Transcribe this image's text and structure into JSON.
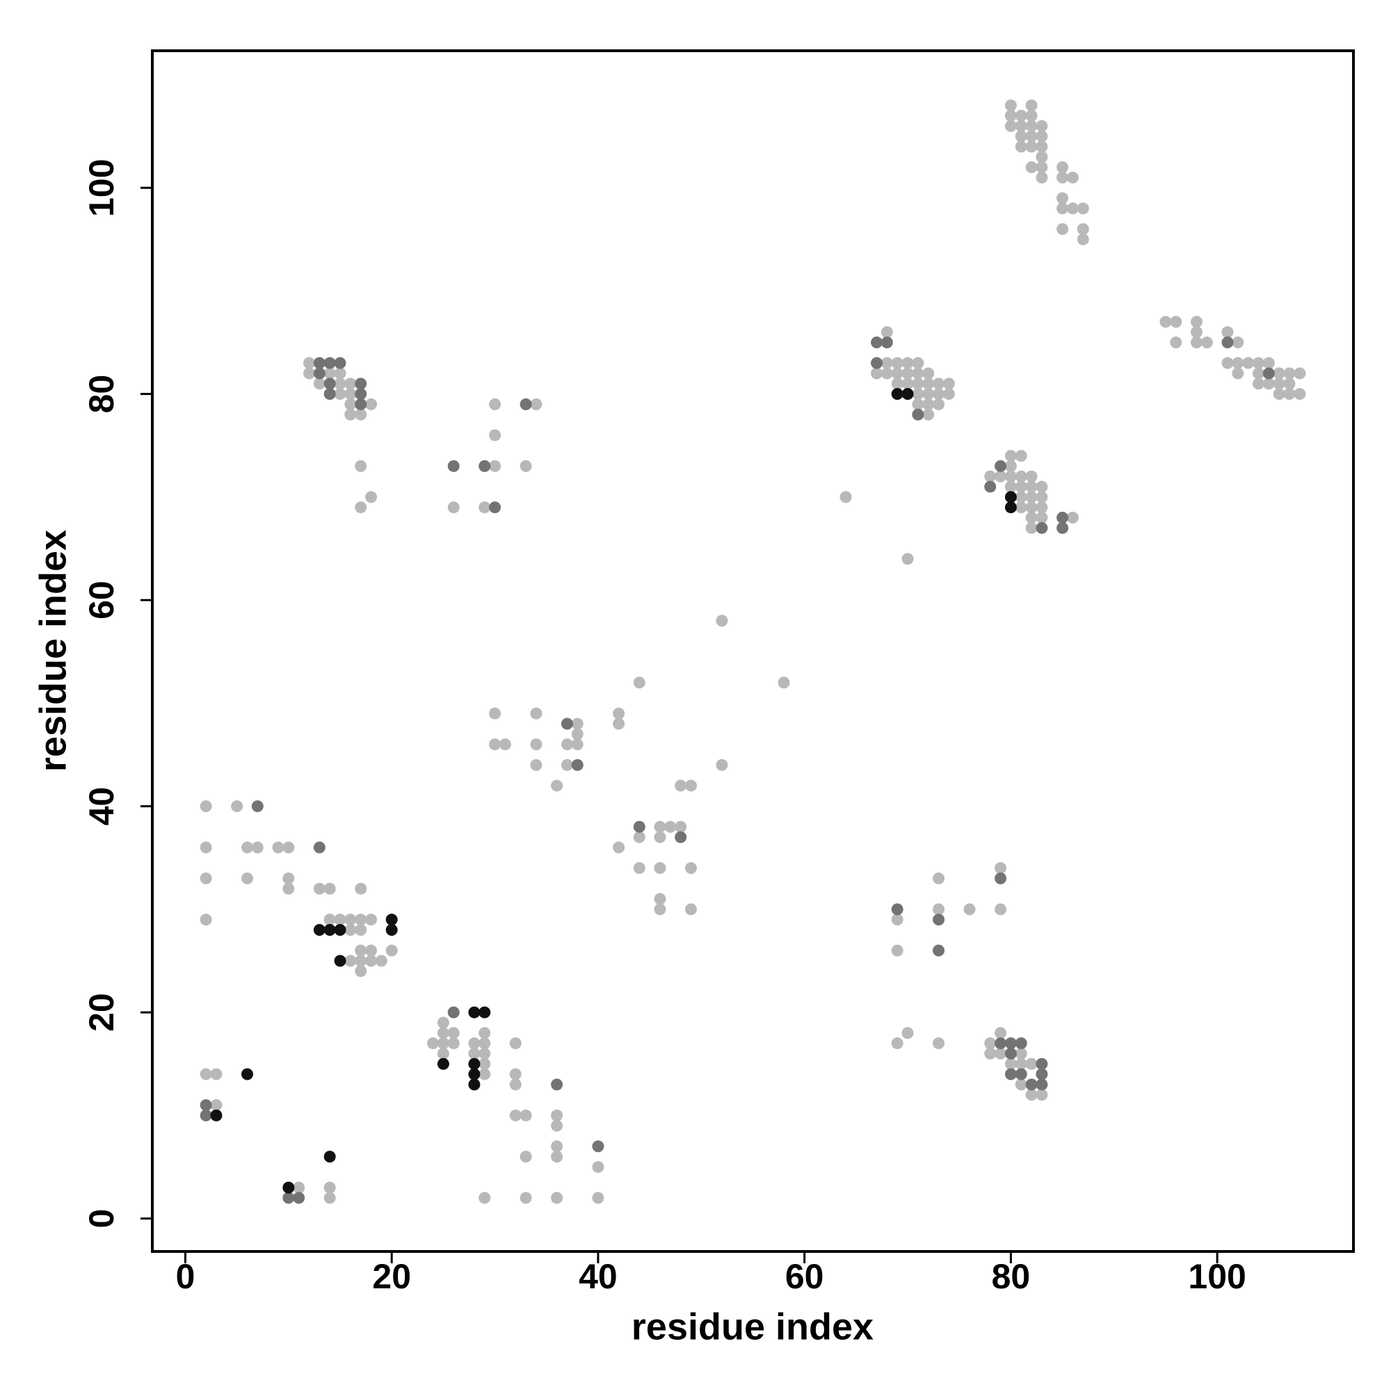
{
  "chart_data": {
    "type": "scatter",
    "x_label": "residue index",
    "y_label": "residue index",
    "xlim": [
      -3.2,
      113.2
    ],
    "ylim": [
      -3.2,
      113.3
    ],
    "xticks": [
      0,
      20,
      40,
      60,
      80,
      100
    ],
    "yticks": [
      0,
      20,
      40,
      60,
      80,
      100
    ],
    "series": [
      {
        "color": "#b8b8b8",
        "x": [
          2,
          5,
          2,
          6,
          7,
          9,
          10,
          2,
          6,
          10,
          10,
          2,
          13,
          14,
          17,
          14,
          15,
          16,
          17,
          18,
          16,
          17,
          17,
          18,
          16,
          17,
          18,
          19,
          17,
          20,
          2,
          3,
          3,
          11,
          14,
          14,
          24,
          25,
          25,
          25,
          25,
          26,
          26,
          28,
          28,
          29,
          29,
          29,
          29,
          29,
          32,
          32,
          32,
          32,
          33,
          33,
          36,
          36,
          36,
          36,
          29,
          33,
          36,
          40,
          40,
          30,
          34,
          30,
          31,
          34,
          37,
          38,
          38,
          38,
          42,
          42,
          44,
          52,
          58,
          52,
          48,
          49,
          34,
          37,
          36,
          42,
          44,
          46,
          47,
          48,
          46,
          44,
          46,
          49,
          46,
          46,
          49,
          12,
          12,
          14,
          15,
          13,
          15,
          15,
          16,
          16,
          17,
          16,
          16,
          17,
          18,
          17,
          17,
          18,
          26,
          30,
          29,
          30,
          30,
          34,
          33,
          68,
          68,
          69,
          70,
          71,
          68,
          69,
          70,
          71,
          72,
          69,
          70,
          71,
          72,
          73,
          74,
          71,
          72,
          73,
          74,
          71,
          72,
          73,
          72,
          67,
          64,
          70,
          78,
          80,
          81,
          79,
          80,
          81,
          82,
          80,
          81,
          82,
          83,
          81,
          82,
          83,
          81,
          82,
          83,
          82,
          83,
          86,
          82,
          80,
          80,
          82,
          80,
          81,
          82,
          80,
          81,
          82,
          83,
          81,
          82,
          83,
          81,
          82,
          83,
          83,
          82,
          83,
          83,
          85,
          85,
          86,
          85,
          85,
          86,
          87,
          85,
          87,
          87,
          95,
          96,
          98,
          96,
          98,
          98,
          99,
          101,
          102,
          101,
          102,
          102,
          103,
          104,
          105,
          104,
          104,
          105,
          106,
          106,
          107,
          107,
          108,
          106,
          107,
          108,
          69,
          69,
          73,
          73,
          76,
          79,
          79,
          69,
          70,
          73,
          78,
          78,
          79,
          79,
          80,
          81,
          81,
          81,
          82,
          82,
          83
        ],
        "y": [
          40,
          40,
          36,
          36,
          36,
          36,
          36,
          33,
          33,
          33,
          32,
          29,
          32,
          32,
          32,
          29,
          29,
          29,
          29,
          29,
          28,
          28,
          26,
          26,
          25,
          25,
          25,
          25,
          24,
          26,
          14,
          14,
          11,
          3,
          3,
          2,
          17,
          19,
          18,
          17,
          16,
          18,
          17,
          17,
          16,
          18,
          17,
          16,
          15,
          14,
          17,
          14,
          13,
          10,
          10,
          6,
          10,
          9,
          7,
          6,
          2,
          2,
          2,
          5,
          2,
          49,
          49,
          46,
          46,
          46,
          46,
          47,
          46,
          48,
          49,
          48,
          52,
          58,
          52,
          44,
          42,
          42,
          44,
          44,
          42,
          36,
          37,
          38,
          38,
          38,
          37,
          34,
          34,
          34,
          31,
          30,
          30,
          83,
          82,
          82,
          82,
          81,
          81,
          80,
          80,
          81,
          79,
          79,
          78,
          78,
          79,
          73,
          69,
          70,
          69,
          79,
          69,
          73,
          76,
          79,
          73,
          86,
          83,
          83,
          83,
          83,
          82,
          82,
          82,
          82,
          82,
          81,
          81,
          81,
          81,
          81,
          81,
          80,
          80,
          80,
          80,
          79,
          79,
          79,
          78,
          82,
          70,
          64,
          72,
          74,
          74,
          72,
          72,
          72,
          72,
          71,
          71,
          71,
          71,
          70,
          70,
          70,
          69,
          69,
          69,
          68,
          68,
          68,
          67,
          73,
          108,
          108,
          107,
          107,
          107,
          106,
          106,
          106,
          106,
          105,
          105,
          105,
          104,
          104,
          104,
          103,
          102,
          102,
          101,
          102,
          101,
          101,
          99,
          98,
          98,
          98,
          96,
          96,
          95,
          87,
          87,
          87,
          85,
          86,
          85,
          85,
          86,
          85,
          83,
          83,
          82,
          83,
          83,
          83,
          82,
          81,
          81,
          82,
          81,
          82,
          81,
          82,
          80,
          80,
          80,
          29,
          26,
          33,
          30,
          30,
          34,
          30,
          17,
          18,
          17,
          17,
          16,
          18,
          16,
          15,
          16,
          15,
          13,
          15,
          12,
          12
        ]
      },
      {
        "color": "#737373",
        "x": [
          7,
          13,
          2,
          2,
          10,
          11,
          26,
          36,
          40,
          37,
          38,
          44,
          48,
          13,
          14,
          15,
          13,
          14,
          14,
          17,
          17,
          17,
          26,
          29,
          30,
          33,
          67,
          68,
          67,
          71,
          78,
          79,
          83,
          85,
          85,
          101,
          105,
          69,
          73,
          73,
          79,
          79,
          80,
          81,
          80,
          80,
          81,
          82,
          83,
          83,
          83
        ],
        "y": [
          40,
          36,
          11,
          10,
          2,
          2,
          20,
          13,
          7,
          48,
          44,
          38,
          37,
          83,
          83,
          83,
          82,
          81,
          80,
          81,
          80,
          79,
          73,
          73,
          69,
          79,
          85,
          85,
          83,
          78,
          71,
          73,
          67,
          68,
          67,
          85,
          82,
          30,
          29,
          26,
          33,
          17,
          17,
          17,
          16,
          14,
          14,
          13,
          15,
          14,
          13
        ]
      },
      {
        "color": "#111111",
        "x": [
          13,
          14,
          15,
          15,
          20,
          20,
          3,
          6,
          10,
          14,
          25,
          28,
          29,
          28,
          28,
          28,
          69,
          70,
          80,
          80
        ],
        "y": [
          28,
          28,
          28,
          25,
          29,
          28,
          10,
          14,
          3,
          6,
          15,
          20,
          20,
          15,
          14,
          13,
          80,
          80,
          70,
          69
        ]
      }
    ]
  }
}
